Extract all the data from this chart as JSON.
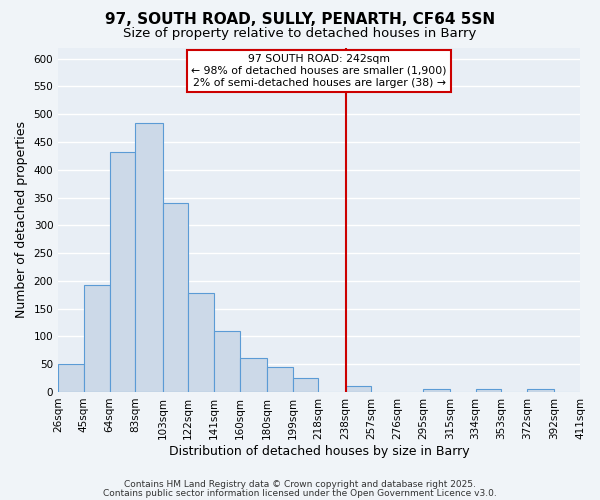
{
  "title": "97, SOUTH ROAD, SULLY, PENARTH, CF64 5SN",
  "subtitle": "Size of property relative to detached houses in Barry",
  "xlabel": "Distribution of detached houses by size in Barry",
  "ylabel": "Number of detached properties",
  "bin_edges": [
    26,
    45,
    64,
    83,
    103,
    122,
    141,
    160,
    180,
    199,
    218,
    238,
    257,
    276,
    295,
    315,
    334,
    353,
    372,
    392,
    411
  ],
  "bar_heights": [
    50,
    192,
    432,
    484,
    340,
    179,
    110,
    61,
    45,
    25,
    0,
    10,
    0,
    0,
    5,
    0,
    5,
    0,
    5,
    0
  ],
  "bar_color": "#ccd9e8",
  "bar_edgecolor": "#5b9bd5",
  "vline_x": 238,
  "vline_color": "#cc0000",
  "annotation_text": "97 SOUTH ROAD: 242sqm\n← 98% of detached houses are smaller (1,900)\n2% of semi-detached houses are larger (38) →",
  "ylim": [
    0,
    620
  ],
  "yticks": [
    0,
    50,
    100,
    150,
    200,
    250,
    300,
    350,
    400,
    450,
    500,
    550,
    600
  ],
  "tick_labels": [
    "26sqm",
    "45sqm",
    "64sqm",
    "83sqm",
    "103sqm",
    "122sqm",
    "141sqm",
    "160sqm",
    "180sqm",
    "199sqm",
    "218sqm",
    "238sqm",
    "257sqm",
    "276sqm",
    "295sqm",
    "315sqm",
    "334sqm",
    "353sqm",
    "372sqm",
    "392sqm",
    "411sqm"
  ],
  "footnote1": "Contains HM Land Registry data © Crown copyright and database right 2025.",
  "footnote2": "Contains public sector information licensed under the Open Government Licence v3.0.",
  "background_color": "#f0f4f8",
  "plot_bg_color": "#e8eef5",
  "grid_color": "#ffffff",
  "title_fontsize": 11,
  "subtitle_fontsize": 9.5,
  "axis_label_fontsize": 9,
  "tick_fontsize": 7.5,
  "footnote_fontsize": 6.5
}
